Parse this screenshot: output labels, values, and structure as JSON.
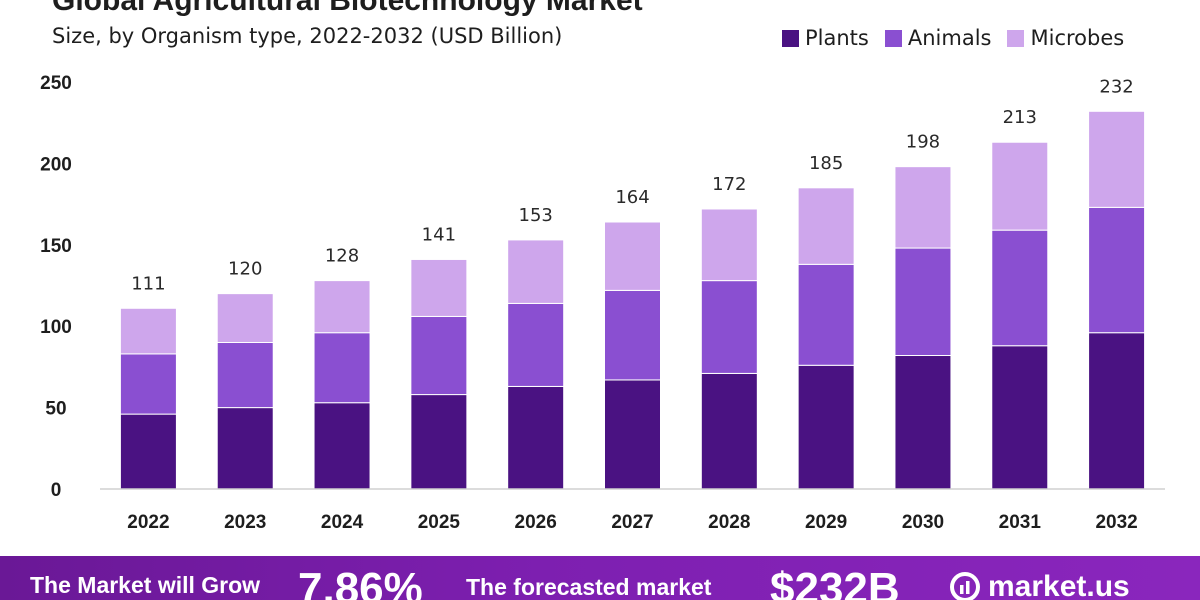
{
  "chart_data": {
    "type": "bar",
    "stacked": true,
    "title": "Global Agricultural Biotechnology  Market",
    "subtitle": "Size, by Organism type, 2022-2032 (USD Billion)",
    "categories": [
      "2022",
      "2023",
      "2024",
      "2025",
      "2026",
      "2027",
      "2028",
      "2029",
      "2030",
      "2031",
      "2032"
    ],
    "series": [
      {
        "name": "Plants",
        "color": "#4a1282",
        "values": [
          46,
          50,
          53,
          58,
          63,
          67,
          71,
          76,
          82,
          88,
          96
        ]
      },
      {
        "name": "Animals",
        "color": "#8a4fd1",
        "values": [
          37,
          40,
          43,
          48,
          51,
          55,
          57,
          62,
          66,
          71,
          77
        ]
      },
      {
        "name": "Microbes",
        "color": "#cea6ec",
        "values": [
          28,
          30,
          32,
          35,
          39,
          42,
          44,
          47,
          50,
          54,
          59
        ]
      }
    ],
    "totals": [
      "111",
      "120",
      "128",
      "141",
      "153",
      "164",
      "172",
      "185",
      "198",
      "213",
      "232"
    ],
    "yticks": [
      "0",
      "50",
      "100",
      "150",
      "200",
      "250"
    ],
    "ylim": [
      0,
      250
    ],
    "grid": false,
    "legend": "top-right"
  },
  "banner": {
    "grow_text": "The Market will Grow",
    "cagr_value": "7.86%",
    "forecast_text": "The forecasted market",
    "market_value": "$232B",
    "logo_text": "market.us",
    "background_color": "#7d1fb0"
  }
}
